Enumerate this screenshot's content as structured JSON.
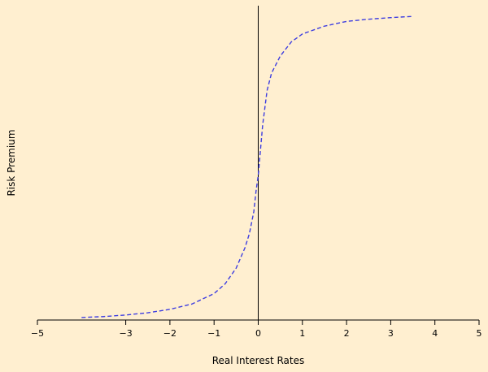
{
  "chart_data": {
    "type": "line",
    "title": "",
    "xlabel": "Real Interest Rates",
    "ylabel": "Risk Premium",
    "xlim": [
      -5,
      5
    ],
    "x_ticks": [
      "−5",
      "−3",
      "−2",
      "−1",
      "0",
      "1",
      "2",
      "3",
      "4",
      "5"
    ],
    "y_tick_labels_shown": false,
    "grid": false,
    "legend": "none",
    "series": [
      {
        "line_style": "dashed",
        "color": "#3d3de0",
        "x": [
          -4,
          -3.5,
          -3,
          -2.5,
          -2,
          -1.5,
          -1,
          -0.75,
          -0.5,
          -0.3,
          -0.2,
          -0.1,
          -0.05,
          0,
          0.05,
          0.1,
          0.2,
          0.3,
          0.5,
          0.75,
          1,
          1.5,
          2,
          2.5,
          3,
          3.5
        ],
        "y": [
          0.008,
          0.011,
          0.016,
          0.023,
          0.034,
          0.051,
          0.084,
          0.115,
          0.165,
          0.23,
          0.275,
          0.345,
          0.41,
          0.46,
          0.54,
          0.62,
          0.73,
          0.785,
          0.84,
          0.885,
          0.91,
          0.935,
          0.95,
          0.957,
          0.962,
          0.966
        ]
      }
    ],
    "ylim": [
      0,
      1
    ]
  },
  "colors": {
    "background": "#ffefd0",
    "axis": "#000000",
    "series": "#3d3de0"
  }
}
